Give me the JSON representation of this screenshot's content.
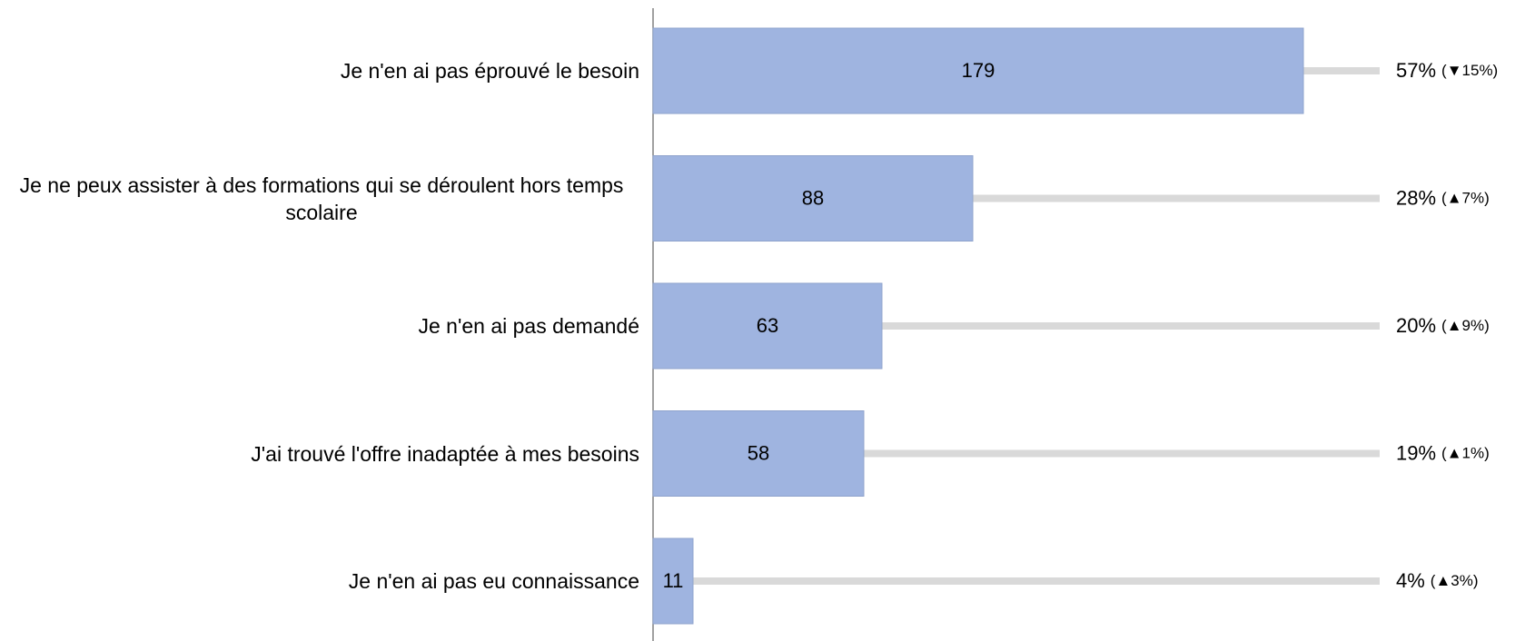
{
  "chart_data": {
    "type": "bar",
    "orientation": "horizontal",
    "categories": [
      "Je n'en ai pas éprouvé le besoin",
      "Je ne peux assister à des formations qui se déroulent hors temps scolaire",
      "Je n'en ai pas demandé",
      "J'ai trouvé l'offre inadaptée à mes besoins",
      "Je n'en ai pas eu connaissance"
    ],
    "values": [
      179,
      88,
      63,
      58,
      11
    ],
    "percent_labels": [
      "57%",
      "28%",
      "20%",
      "19%",
      "4%"
    ],
    "change_labels": [
      "(▼15%)",
      "(▲7%)",
      "(▲9%)",
      "(▲1%)",
      "(▲3%)"
    ],
    "color": "#9fb4e0",
    "xlim": [
      0,
      200
    ]
  }
}
